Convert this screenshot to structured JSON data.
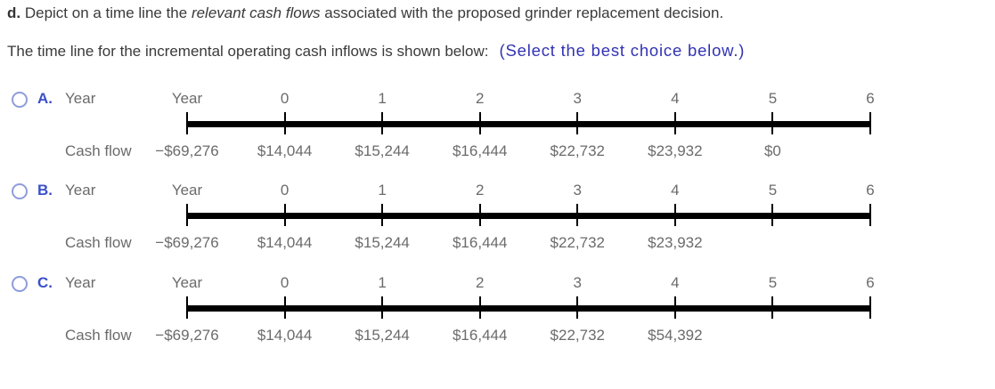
{
  "question": {
    "part_label": "d.",
    "text_before_italic": " Depict on a time line the ",
    "italic_text": "relevant cash flows",
    "text_after_italic": " associated with the proposed grinder replacement decision.",
    "prompt": "The time line for the incremental operating cash inflows is shown below:",
    "select_hint": "(Select the best choice below.)"
  },
  "timeline": {
    "row_label_top": "Year",
    "row_label_bottom": "Cash flow",
    "tick_labels": [
      "Year",
      "0",
      "1",
      "2",
      "3",
      "4",
      "5",
      "6"
    ]
  },
  "options": [
    {
      "letter": "A.",
      "cash_flows": [
        "−$69,276",
        "$14,044",
        "$15,244",
        "$16,444",
        "$22,732",
        "$23,932",
        "$0",
        ""
      ]
    },
    {
      "letter": "B.",
      "cash_flows": [
        "−$69,276",
        "$14,044",
        "$15,244",
        "$16,444",
        "$22,732",
        "$23,932",
        "",
        ""
      ]
    },
    {
      "letter": "C.",
      "cash_flows": [
        "−$69,276",
        "$14,044",
        "$15,244",
        "$16,444",
        "$22,732",
        "$54,392",
        "",
        ""
      ]
    }
  ],
  "colors": {
    "option_letter_blue": "#3a50c8",
    "hint_blue": "#3232b4",
    "question_text": "#3a3a3a",
    "timeline_text_gray": "#6b6b6b",
    "timeline_bar": "#000000",
    "radio_border": "#8f9cdb"
  }
}
